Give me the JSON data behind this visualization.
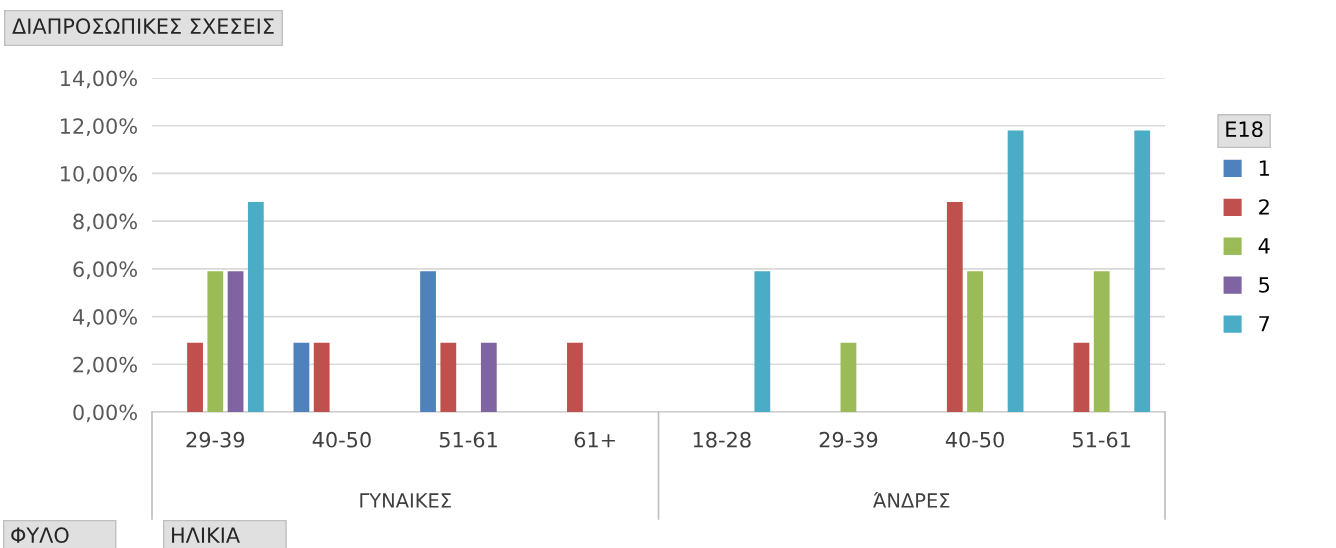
{
  "chart_data": {
    "type": "bar",
    "title": "ΔΙΑΠΡΟΣΩΠΙΚΕΣ ΣΧΕΣΕΙΣ",
    "categories": [
      "29-39",
      "40-50",
      "51-61",
      "61+",
      "18-28",
      "29-39",
      "40-50",
      "51-61"
    ],
    "series": [
      {
        "name": "1",
        "color": "#4f81bd",
        "values": [
          null,
          2.9,
          5.9,
          null,
          null,
          null,
          null,
          null
        ]
      },
      {
        "name": "2",
        "color": "#c0504d",
        "values": [
          2.9,
          2.9,
          2.9,
          2.9,
          null,
          null,
          8.8,
          2.9
        ]
      },
      {
        "name": "4",
        "color": "#9bbb59",
        "values": [
          5.9,
          null,
          null,
          null,
          null,
          2.9,
          5.9,
          5.9
        ]
      },
      {
        "name": "5",
        "color": "#8064a2",
        "values": [
          5.9,
          null,
          2.9,
          null,
          null,
          null,
          null,
          null
        ]
      },
      {
        "name": "7",
        "color": "#4bacc6",
        "values": [
          8.8,
          null,
          null,
          null,
          5.9,
          null,
          11.8,
          11.8
        ]
      }
    ],
    "ylim": [
      0,
      14
    ],
    "yticks": [
      {
        "value": 0,
        "label": "0,00%"
      },
      {
        "value": 2,
        "label": "2,00%"
      },
      {
        "value": 4,
        "label": "4,00%"
      },
      {
        "value": 6,
        "label": "6,00%"
      },
      {
        "value": 8,
        "label": "8,00%"
      },
      {
        "value": 10,
        "label": "10,00%"
      },
      {
        "value": 12,
        "label": "12,00%"
      },
      {
        "value": 14,
        "label": "14,00%"
      }
    ],
    "grid": "y",
    "legend": "right",
    "legend_title": "E18",
    "annotations": [
      "ΓΥΝΑΙΚΕΣ",
      "ΆΝΔΡΕΣ",
      "ΦΥΛΟ",
      "ΗΛΙΚΙΑ"
    ]
  }
}
